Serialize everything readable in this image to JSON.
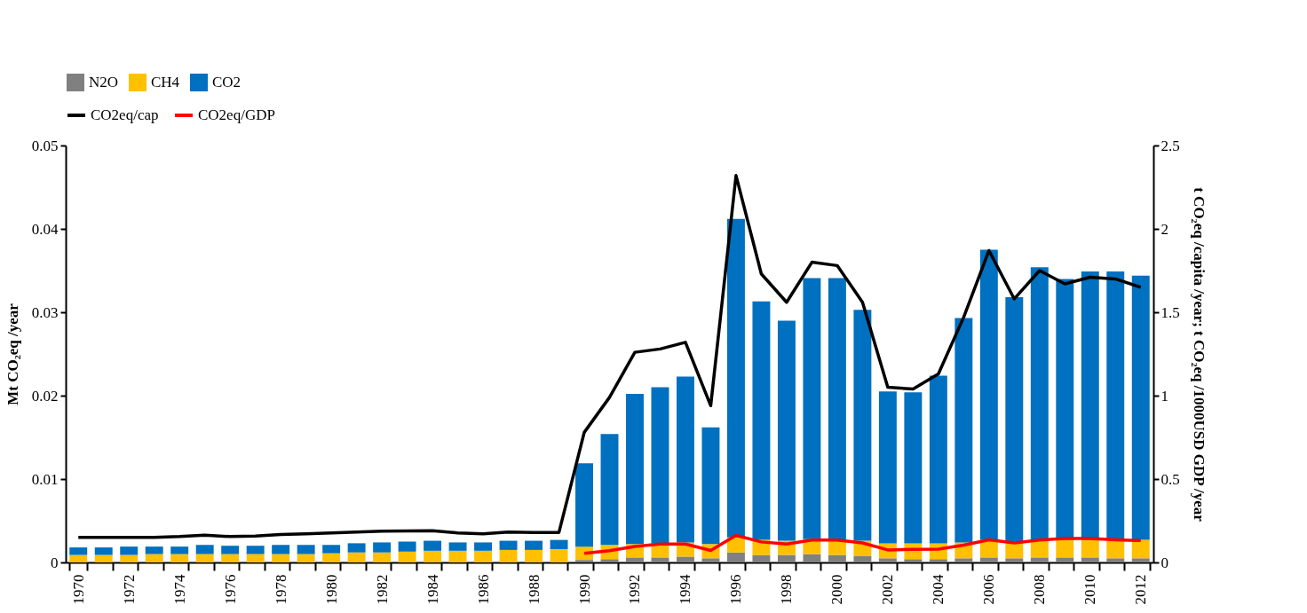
{
  "chart_data": {
    "type": "bar",
    "stacked": true,
    "ylabel": "Mt CO₂eq /year",
    "y2label": "t CO₂eq /capita /year; t CO₂eq /1000USD GDP /year",
    "categories": [
      "1970",
      null,
      "1972",
      null,
      "1974",
      null,
      "1976",
      null,
      "1978",
      null,
      "1980",
      null,
      "1982",
      null,
      "1984",
      null,
      "1986",
      null,
      "1988",
      null,
      "1990",
      null,
      "1992",
      null,
      "1994",
      null,
      "1996",
      null,
      "1998",
      null,
      "2000",
      null,
      "2002",
      null,
      "2004",
      null,
      "2006",
      null,
      "2008",
      null,
      "2010",
      null,
      "2012"
    ],
    "ylim": [
      0,
      0.05
    ],
    "yticks": [
      0,
      0.01,
      0.02,
      0.03,
      0.04,
      0.05
    ],
    "y2lim": [
      0,
      2.5
    ],
    "y2ticks": [
      0,
      0.5,
      1,
      1.5,
      2,
      2.5
    ],
    "grid": false,
    "legend": "top left",
    "series": [
      {
        "name": "N2O",
        "color": "#808080",
        "values": [
          0,
          0,
          0,
          0,
          0,
          0,
          0,
          0,
          0,
          0,
          0,
          0,
          0,
          0,
          0,
          0,
          0,
          0,
          0,
          0,
          0.0003,
          0.0004,
          0.0006,
          0.0006,
          0.0007,
          0.0005,
          0.0012,
          0.0009,
          0.0009,
          0.001,
          0.0009,
          0.0008,
          0.0005,
          0.0004,
          0.0004,
          0.0005,
          0.0006,
          0.0005,
          0.0006,
          0.0006,
          0.0006,
          0.0005,
          0.0005
        ]
      },
      {
        "name": "CH4",
        "color": "#ffc000",
        "values": [
          0.0009,
          0.0009,
          0.0009,
          0.001,
          0.001,
          0.001,
          0.001,
          0.001,
          0.001,
          0.001,
          0.0011,
          0.0012,
          0.0012,
          0.0013,
          0.0014,
          0.0014,
          0.0014,
          0.0015,
          0.0015,
          0.0016,
          0.0016,
          0.0017,
          0.0016,
          0.0017,
          0.0017,
          0.0017,
          0.0018,
          0.0018,
          0.0017,
          0.0018,
          0.0018,
          0.0018,
          0.0018,
          0.0019,
          0.0019,
          0.0019,
          0.0021,
          0.002,
          0.002,
          0.0021,
          0.0021,
          0.0022,
          0.0022
        ]
      },
      {
        "name": "CO2",
        "color": "#0070c0",
        "values": [
          0.0009,
          0.0009,
          0.001,
          0.0009,
          0.0009,
          0.0011,
          0.001,
          0.001,
          0.0011,
          0.0011,
          0.001,
          0.0011,
          0.0012,
          0.0012,
          0.0012,
          0.001,
          0.001,
          0.0011,
          0.0011,
          0.0011,
          0.01,
          0.0133,
          0.018,
          0.0187,
          0.0199,
          0.014,
          0.0382,
          0.0286,
          0.0264,
          0.0313,
          0.0314,
          0.0277,
          0.0182,
          0.0181,
          0.0201,
          0.0269,
          0.0348,
          0.0293,
          0.0328,
          0.0313,
          0.0322,
          0.0322,
          0.0317
        ]
      },
      {
        "name": "CO2eq/cap",
        "type": "line",
        "axis": "y2",
        "color": "#000000",
        "values": [
          0.15,
          0.15,
          0.15,
          0.15,
          0.155,
          0.164,
          0.155,
          0.158,
          0.168,
          0.172,
          0.177,
          0.182,
          0.187,
          0.189,
          0.19,
          0.177,
          0.171,
          0.182,
          0.18,
          0.18,
          0.78,
          0.99,
          1.26,
          1.28,
          1.32,
          0.94,
          2.32,
          1.73,
          1.56,
          1.8,
          1.78,
          1.56,
          1.05,
          1.04,
          1.13,
          1.47,
          1.87,
          1.58,
          1.75,
          1.67,
          1.71,
          1.7,
          1.65
        ]
      },
      {
        "name": "CO2eq/GDP",
        "type": "line",
        "axis": "y2",
        "color": "#ff0000",
        "values": [
          null,
          null,
          null,
          null,
          null,
          null,
          null,
          null,
          null,
          null,
          null,
          null,
          null,
          null,
          null,
          null,
          null,
          null,
          null,
          null,
          0.055,
          0.07,
          0.096,
          0.11,
          0.11,
          0.072,
          0.162,
          0.123,
          0.11,
          0.134,
          0.134,
          0.117,
          0.075,
          0.079,
          0.08,
          0.104,
          0.136,
          0.117,
          0.134,
          0.143,
          0.143,
          0.136,
          0.131
        ]
      }
    ]
  }
}
